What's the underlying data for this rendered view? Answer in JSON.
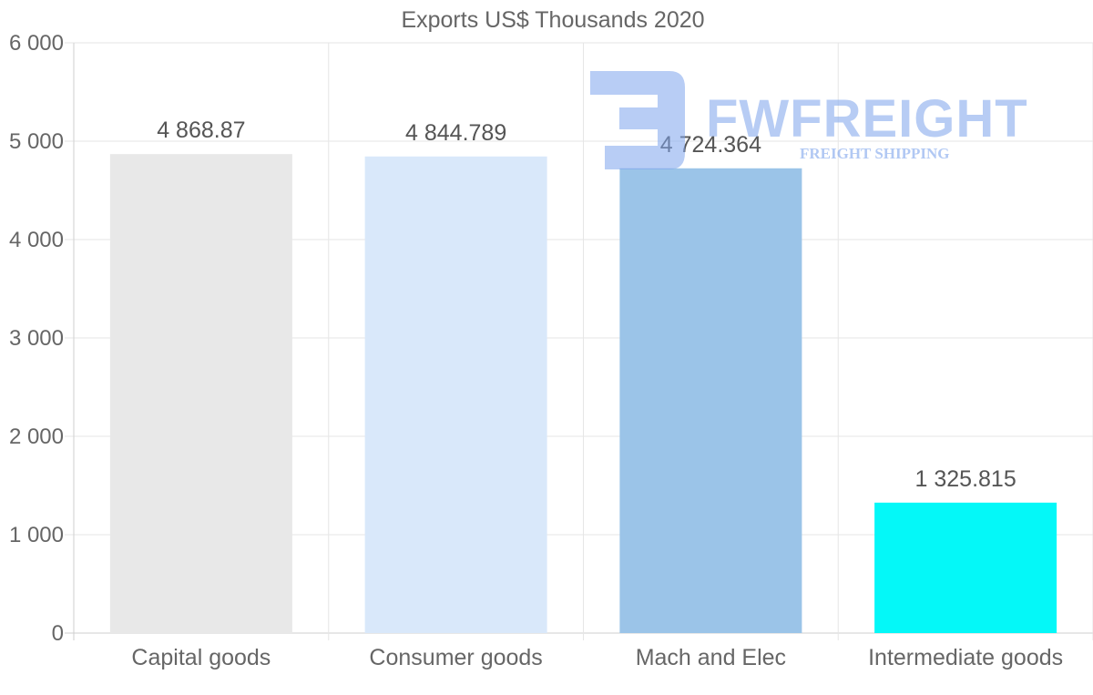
{
  "chart_data": {
    "type": "bar",
    "title": "Exports US$ Thousands 2020",
    "categories": [
      "Capital goods",
      "Consumer goods",
      "Mach and Elec",
      "Intermediate goods"
    ],
    "values": [
      4868.87,
      4844.789,
      4724.364,
      1325.815
    ],
    "value_labels": [
      "4 868.87",
      "4 844.789",
      "4 724.364",
      "1 325.815"
    ],
    "colors": [
      "#e8e8e8",
      "#d9e8fa",
      "#9bc4e8",
      "#04f8f8"
    ],
    "xlabel": "",
    "ylabel": "",
    "ylim": [
      0,
      6000
    ],
    "yticks": [
      0,
      1000,
      2000,
      3000,
      4000,
      5000,
      6000
    ],
    "ytick_labels": [
      "0",
      "1 000",
      "2 000",
      "3 000",
      "4 000",
      "5 000",
      "6 000"
    ],
    "grid": true
  },
  "watermark": {
    "brand": "FWFREIGHT",
    "tagline": "FREIGHT SHIPPING",
    "icon": "fw-logo-icon",
    "color": "#7ea4ec"
  }
}
